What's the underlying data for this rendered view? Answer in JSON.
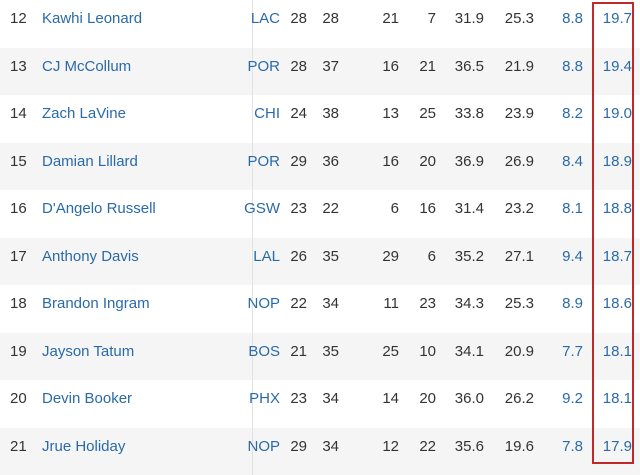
{
  "highlight_color": "#c0282a",
  "link_color": "#2a6aa8",
  "rows": [
    {
      "rank": "12",
      "name": "Kawhi Leonard",
      "team": "LAC",
      "c1": "28",
      "c2": "28",
      "c3": "21",
      "c4": "7",
      "c5": "31.9",
      "c6": "25.3",
      "c7": "8.8",
      "c8": "19.7"
    },
    {
      "rank": "13",
      "name": "CJ McCollum",
      "team": "POR",
      "c1": "28",
      "c2": "37",
      "c3": "16",
      "c4": "21",
      "c5": "36.5",
      "c6": "21.9",
      "c7": "8.8",
      "c8": "19.4"
    },
    {
      "rank": "14",
      "name": "Zach LaVine",
      "team": "CHI",
      "c1": "24",
      "c2": "38",
      "c3": "13",
      "c4": "25",
      "c5": "33.8",
      "c6": "23.9",
      "c7": "8.2",
      "c8": "19.0"
    },
    {
      "rank": "15",
      "name": "Damian Lillard",
      "team": "POR",
      "c1": "29",
      "c2": "36",
      "c3": "16",
      "c4": "20",
      "c5": "36.9",
      "c6": "26.9",
      "c7": "8.4",
      "c8": "18.9"
    },
    {
      "rank": "16",
      "name": "D'Angelo Russell",
      "team": "GSW",
      "c1": "23",
      "c2": "22",
      "c3": "6",
      "c4": "16",
      "c5": "31.4",
      "c6": "23.2",
      "c7": "8.1",
      "c8": "18.8"
    },
    {
      "rank": "17",
      "name": "Anthony Davis",
      "team": "LAL",
      "c1": "26",
      "c2": "35",
      "c3": "29",
      "c4": "6",
      "c5": "35.2",
      "c6": "27.1",
      "c7": "9.4",
      "c8": "18.7"
    },
    {
      "rank": "18",
      "name": "Brandon Ingram",
      "team": "NOP",
      "c1": "22",
      "c2": "34",
      "c3": "11",
      "c4": "23",
      "c5": "34.3",
      "c6": "25.3",
      "c7": "8.9",
      "c8": "18.6"
    },
    {
      "rank": "19",
      "name": "Jayson Tatum",
      "team": "BOS",
      "c1": "21",
      "c2": "35",
      "c3": "25",
      "c4": "10",
      "c5": "34.1",
      "c6": "20.9",
      "c7": "7.7",
      "c8": "18.1"
    },
    {
      "rank": "20",
      "name": "Devin Booker",
      "team": "PHX",
      "c1": "23",
      "c2": "34",
      "c3": "14",
      "c4": "20",
      "c5": "36.0",
      "c6": "26.2",
      "c7": "9.2",
      "c8": "18.1"
    },
    {
      "rank": "21",
      "name": "Jrue Holiday",
      "team": "NOP",
      "c1": "29",
      "c2": "34",
      "c3": "12",
      "c4": "22",
      "c5": "35.6",
      "c6": "19.6",
      "c7": "7.8",
      "c8": "17.9"
    }
  ]
}
